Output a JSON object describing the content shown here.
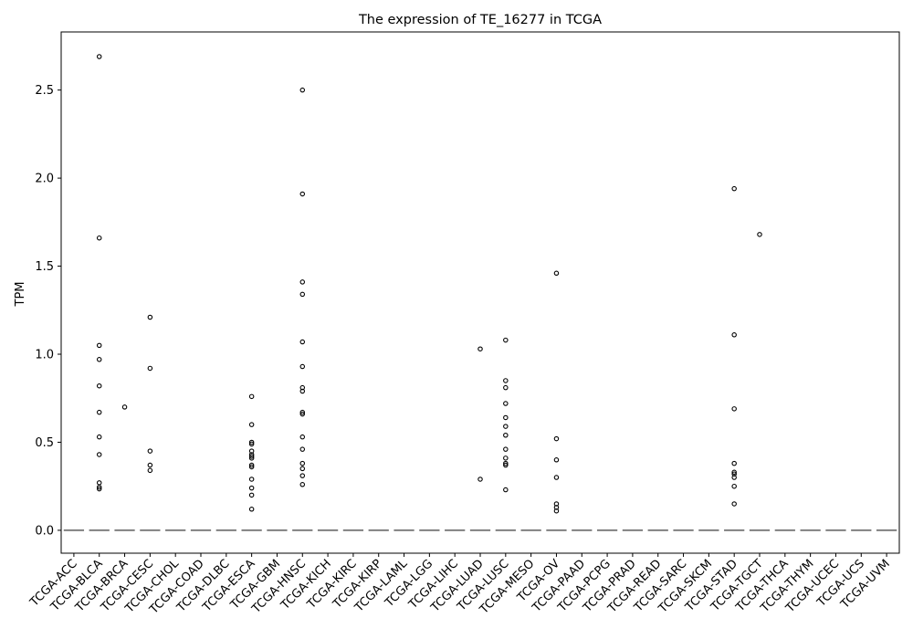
{
  "chart_data": {
    "type": "box",
    "title": "The expression of TE_16277 in TCGA",
    "ylabel": "TPM",
    "xlabel": "",
    "ylim": [
      -0.13,
      2.83
    ],
    "yticks": [
      0.0,
      0.5,
      1.0,
      1.5,
      2.0,
      2.5
    ],
    "ytick_labels": [
      "0.0",
      "0.5",
      "1.0",
      "1.5",
      "2.0",
      "2.5"
    ],
    "grid": false,
    "colors": {
      "box": "#808080",
      "outlier_edge": "#000000",
      "axis": "#000000"
    },
    "categories": [
      "TCGA-ACC",
      "TCGA-BLCA",
      "TCGA-BRCA",
      "TCGA-CESC",
      "TCGA-CHOL",
      "TCGA-COAD",
      "TCGA-DLBC",
      "TCGA-ESCA",
      "TCGA-GBM",
      "TCGA-HNSC",
      "TCGA-KICH",
      "TCGA-KIRC",
      "TCGA-KIRP",
      "TCGA-LAML",
      "TCGA-LGG",
      "TCGA-LIHC",
      "TCGA-LUAD",
      "TCGA-LUSC",
      "TCGA-MESO",
      "TCGA-OV",
      "TCGA-PAAD",
      "TCGA-PCPG",
      "TCGA-PRAD",
      "TCGA-READ",
      "TCGA-SARC",
      "TCGA-SKCM",
      "TCGA-STAD",
      "TCGA-TGCT",
      "TCGA-THCA",
      "TCGA-THYM",
      "TCGA-UCEC",
      "TCGA-UCS",
      "TCGA-UVM"
    ],
    "medians": [
      0,
      0,
      0,
      0,
      0,
      0,
      0,
      0,
      0,
      0,
      0,
      0,
      0,
      0,
      0,
      0,
      0,
      0,
      0,
      0,
      0,
      0,
      0,
      0,
      0,
      0,
      0,
      0,
      0,
      0,
      0,
      0,
      0
    ],
    "outliers": [
      [],
      [
        2.69,
        1.66,
        1.05,
        0.97,
        0.82,
        0.67,
        0.53,
        0.43,
        0.27,
        0.245,
        0.235
      ],
      [
        0.7
      ],
      [
        1.21,
        0.92,
        0.45,
        0.37,
        0.34
      ],
      [],
      [],
      [],
      [
        0.76,
        0.6,
        0.5,
        0.49,
        0.45,
        0.43,
        0.42,
        0.41,
        0.37,
        0.36,
        0.29,
        0.24,
        0.2,
        0.12
      ],
      [],
      [
        2.5,
        1.91,
        1.41,
        1.34,
        1.07,
        0.93,
        0.81,
        0.79,
        0.67,
        0.66,
        0.53,
        0.46,
        0.38,
        0.35,
        0.31,
        0.26
      ],
      [],
      [],
      [],
      [],
      [],
      [],
      [
        1.03,
        0.29
      ],
      [
        1.08,
        0.85,
        0.81,
        0.72,
        0.64,
        0.59,
        0.54,
        0.46,
        0.41,
        0.38,
        0.37,
        0.23
      ],
      [],
      [
        1.46,
        0.52,
        0.4,
        0.3,
        0.15,
        0.13,
        0.11
      ],
      [],
      [],
      [],
      [],
      [],
      [],
      [
        1.94,
        1.11,
        0.69,
        0.38,
        0.33,
        0.32,
        0.3,
        0.25,
        0.15
      ],
      [
        1.68
      ],
      [],
      [],
      [],
      [],
      []
    ]
  }
}
